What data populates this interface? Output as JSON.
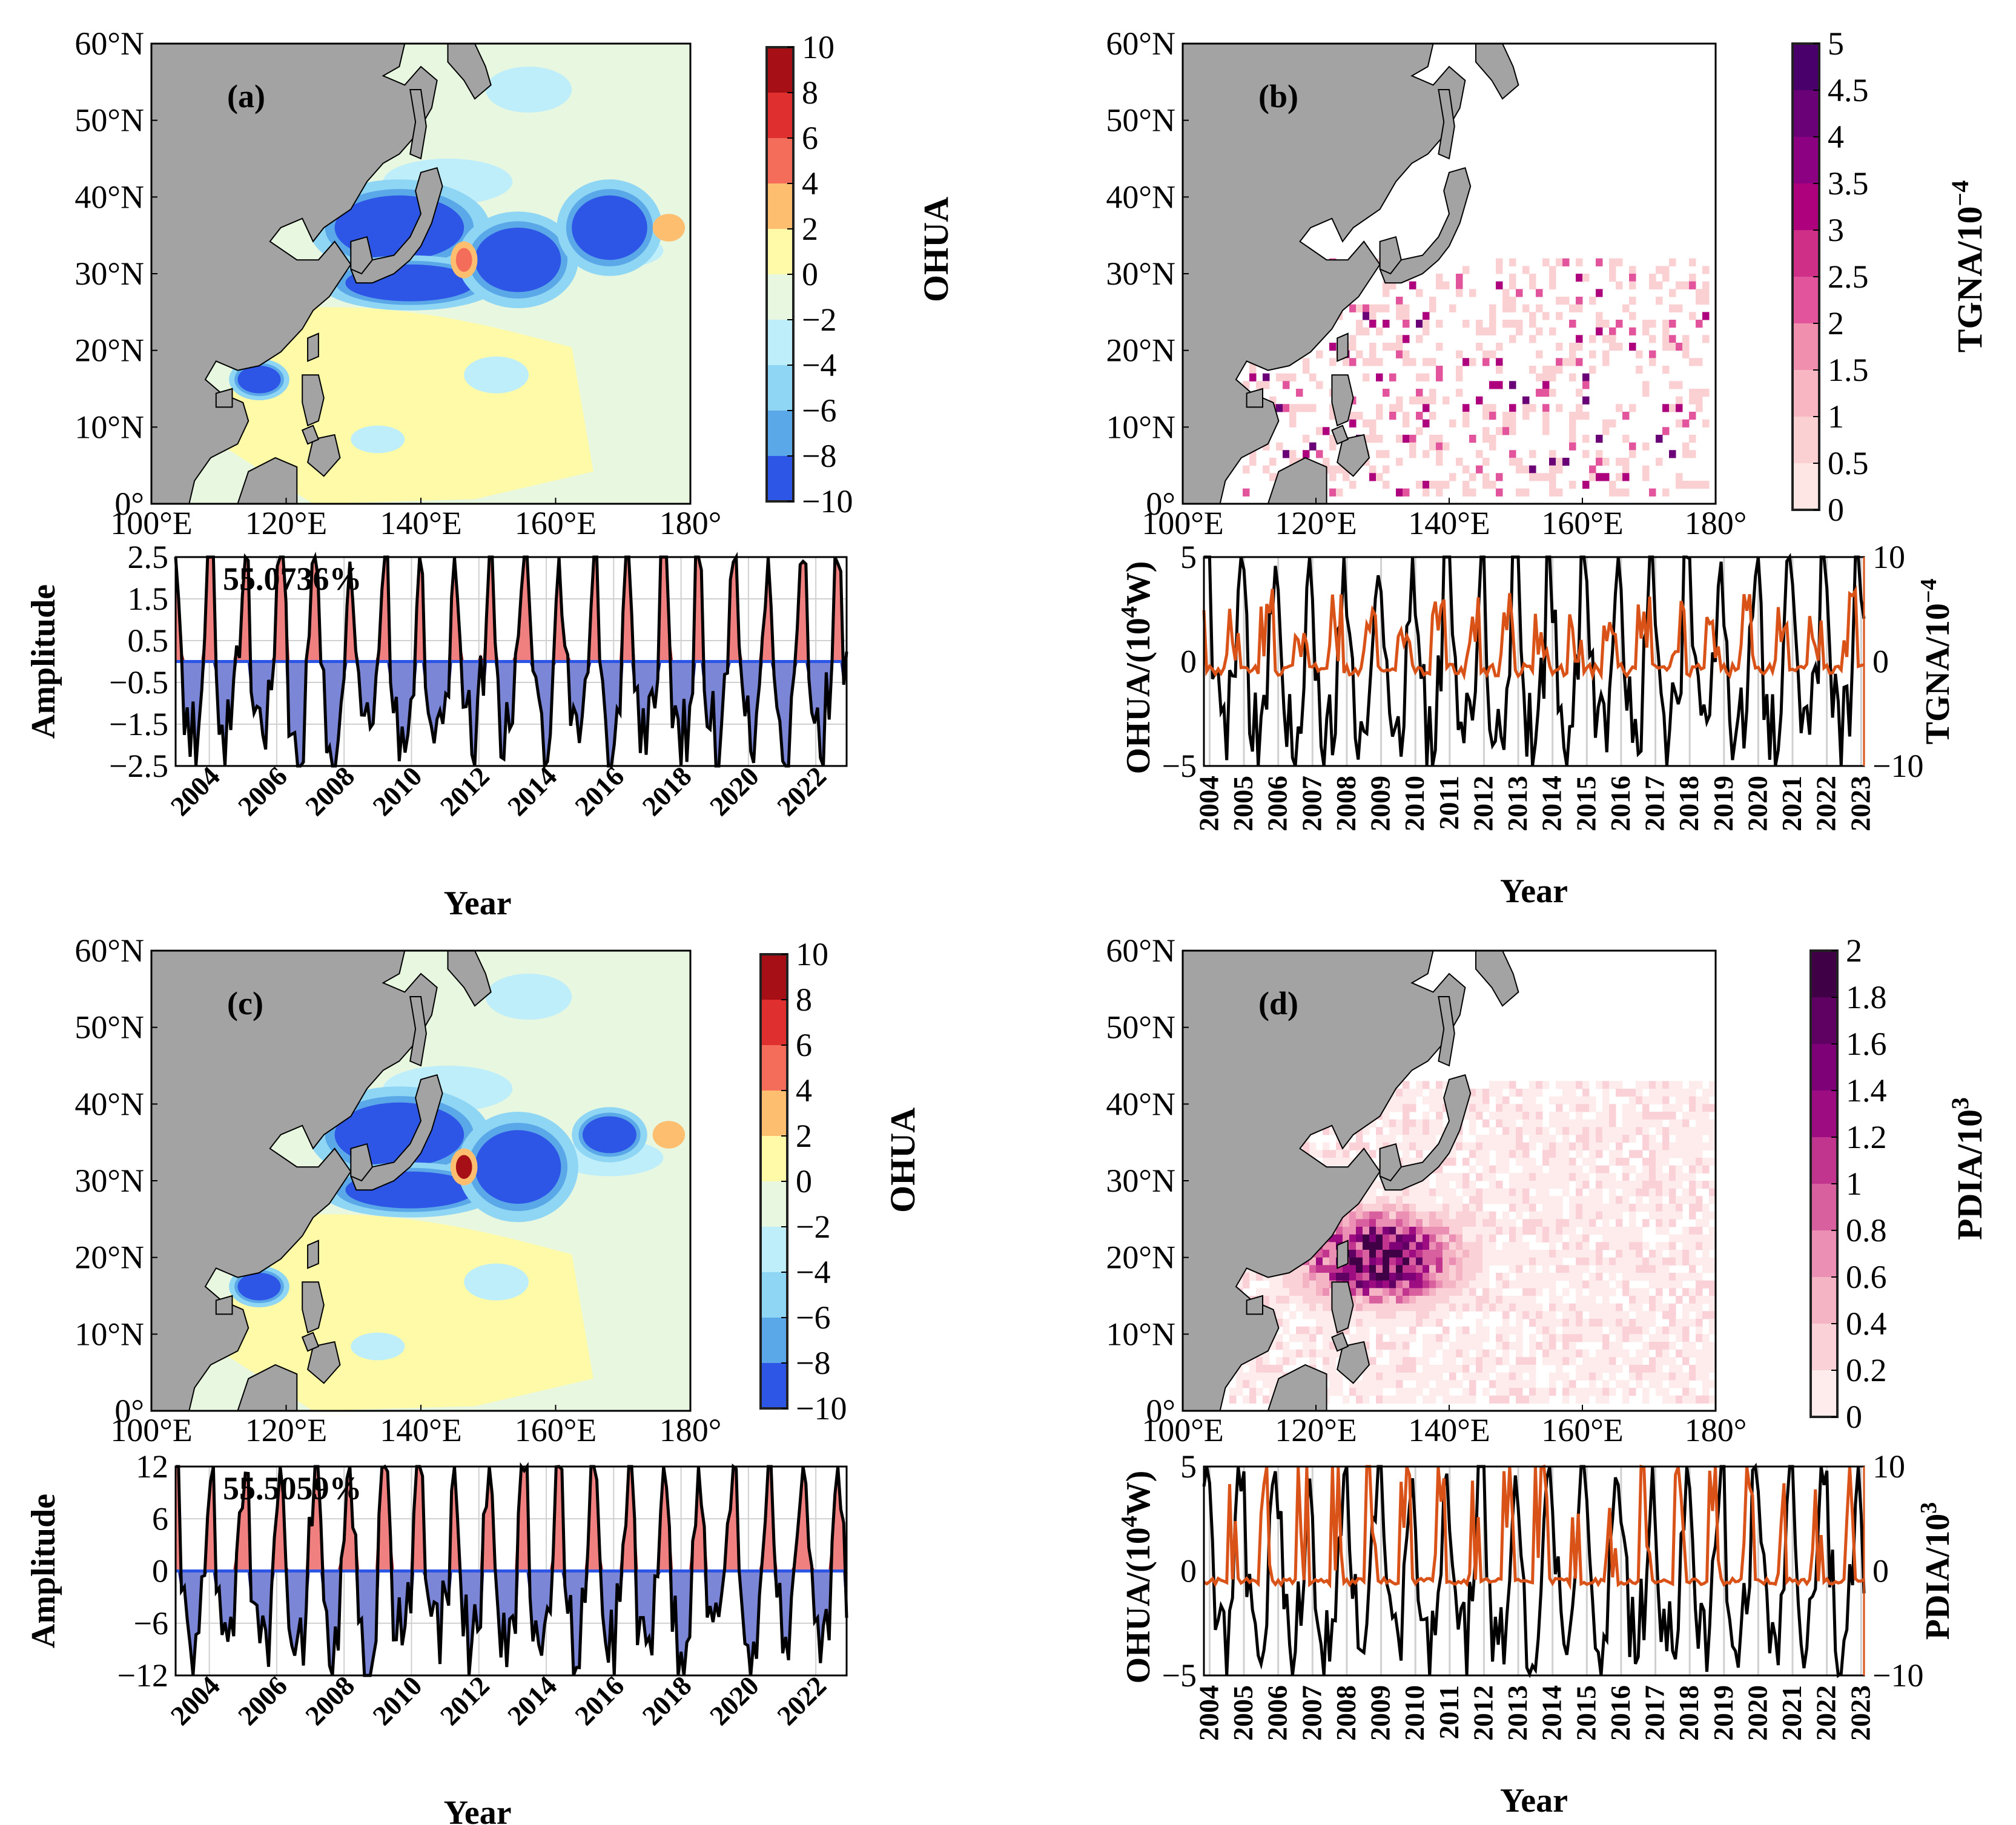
{
  "chart_data": [
    {
      "panel": "(a)",
      "type": "heatmap",
      "colorbar_label": "OHUA",
      "colorbar_ticks": [
        "10",
        "8",
        "6",
        "4",
        "2",
        "0",
        "−2",
        "−4",
        "−6",
        "−8",
        "−10"
      ],
      "colorbar_colors": [
        "#a50f15",
        "#e02f2f",
        "#f46d5a",
        "#fdbf6f",
        "#fefaa8",
        "#e8f7e0",
        "#bfeefb",
        "#8fd6f5",
        "#5ba8e8",
        "#2d55e6"
      ],
      "lon_ticks": [
        "100°E",
        "120°E",
        "140°E",
        "160°E",
        "180°"
      ],
      "lat_ticks": [
        "60°N",
        "50°N",
        "40°N",
        "30°N",
        "20°N",
        "10°N",
        "0°"
      ]
    },
    {
      "panel": "(a) time series",
      "type": "area",
      "ylabel": "Amplitude",
      "xlabel": "Year",
      "variance_text": "55.0736%",
      "yticks": [
        "2.5",
        "1.5",
        "0.5",
        "−0.5",
        "−1.5",
        "−2.5"
      ],
      "ylim": [
        -2.5,
        2.5
      ],
      "xticks": [
        "2004",
        "2006",
        "2008",
        "2010",
        "2012",
        "2014",
        "2016",
        "2018",
        "2020",
        "2022"
      ],
      "amplitude_scale": 1.9
    },
    {
      "panel": "(b)",
      "type": "heatmap",
      "colorbar_label": "TGNA/10",
      "colorbar_exp": "−4",
      "colorbar_ticks": [
        "5",
        "4.5",
        "4",
        "3.5",
        "3",
        "2.5",
        "2",
        "1.5",
        "1",
        "0.5",
        "0"
      ],
      "colorbar_colors": [
        "#49006a",
        "#6a0177",
        "#8c0181",
        "#ae017e",
        "#cf2f87",
        "#e2559d",
        "#f08fae",
        "#f7b6c1",
        "#fbd0d2",
        "#fde6e4"
      ],
      "lon_ticks": [
        "100°E",
        "120°E",
        "140°E",
        "160°E",
        "180°"
      ],
      "lat_ticks": [
        "60°N",
        "50°N",
        "40°N",
        "30°N",
        "20°N",
        "10°N",
        "0°"
      ]
    },
    {
      "panel": "(b) time series",
      "type": "line",
      "ylabel_left": "OHUA/(10",
      "ylabel_left_exp": "4",
      "ylabel_left_end": "W)",
      "ylabel_right": "TGNA/10",
      "ylabel_right_exp": "−4",
      "xlabel": "Year",
      "yticks_left": [
        "5",
        "0",
        "−5"
      ],
      "ylim_left": [
        -5,
        5
      ],
      "yticks_right": [
        "10",
        "0",
        "−10"
      ],
      "ylim_right": [
        -10,
        10
      ],
      "xticks": [
        "2004",
        "2005",
        "2006",
        "2007",
        "2008",
        "2009",
        "2010",
        "2011",
        "2012",
        "2013",
        "2014",
        "2015",
        "2016",
        "2017",
        "2018",
        "2019",
        "2020",
        "2021",
        "2022",
        "2023"
      ],
      "series": [
        {
          "name": "OHUA",
          "color": "#000000"
        },
        {
          "name": "TGNA",
          "color": "#d95319"
        }
      ]
    },
    {
      "panel": "(c)",
      "type": "heatmap",
      "colorbar_label": "OHUA",
      "colorbar_ticks": [
        "10",
        "8",
        "6",
        "4",
        "2",
        "0",
        "−2",
        "−4",
        "−6",
        "−8",
        "−10"
      ],
      "colorbar_colors": [
        "#a50f15",
        "#e02f2f",
        "#f46d5a",
        "#fdbf6f",
        "#fefaa8",
        "#e8f7e0",
        "#bfeefb",
        "#8fd6f5",
        "#5ba8e8",
        "#2d55e6"
      ],
      "lon_ticks": [
        "100°E",
        "120°E",
        "140°E",
        "160°E",
        "180°"
      ],
      "lat_ticks": [
        "60°N",
        "50°N",
        "40°N",
        "30°N",
        "20°N",
        "10°N",
        "0°"
      ]
    },
    {
      "panel": "(c) time series",
      "type": "area",
      "ylabel": "Amplitude",
      "xlabel": "Year",
      "variance_text": "55.5059%",
      "yticks": [
        "12",
        "6",
        "0",
        "−6",
        "−12"
      ],
      "ylim": [
        -12,
        12
      ],
      "xticks": [
        "2004",
        "2006",
        "2008",
        "2010",
        "2012",
        "2014",
        "2016",
        "2018",
        "2020",
        "2022"
      ],
      "amplitude_scale": 9.0
    },
    {
      "panel": "(d)",
      "type": "heatmap",
      "colorbar_label": "PDIA/10",
      "colorbar_exp": "3",
      "colorbar_ticks": [
        "2",
        "1.8",
        "1.6",
        "1.4",
        "1.2",
        "1",
        "0.8",
        "0.6",
        "0.4",
        "0.2",
        "0"
      ],
      "colorbar_colors": [
        "#3f0046",
        "#5e0162",
        "#7f0177",
        "#9e0c81",
        "#c2358e",
        "#d9609f",
        "#eb8fb4",
        "#f5b4c4",
        "#f9d1d6",
        "#fdeceb"
      ],
      "lon_ticks": [
        "100°E",
        "120°E",
        "140°E",
        "160°E",
        "180°"
      ],
      "lat_ticks": [
        "60°N",
        "50°N",
        "40°N",
        "30°N",
        "20°N",
        "10°N",
        "0°"
      ]
    },
    {
      "panel": "(d) time series",
      "type": "line",
      "ylabel_left": "OHUA/(10",
      "ylabel_left_exp": "4",
      "ylabel_left_end": "W)",
      "ylabel_right": "PDIA/10",
      "ylabel_right_exp": "3",
      "xlabel": "Year",
      "yticks_left": [
        "5",
        "0",
        "−5"
      ],
      "ylim_left": [
        -5,
        5
      ],
      "yticks_right": [
        "10",
        "0",
        "−10"
      ],
      "ylim_right": [
        -10,
        10
      ],
      "xticks": [
        "2004",
        "2005",
        "2006",
        "2007",
        "2008",
        "2009",
        "2010",
        "2011",
        "2012",
        "2013",
        "2014",
        "2015",
        "2016",
        "2017",
        "2018",
        "2019",
        "2020",
        "2021",
        "2022",
        "2023"
      ],
      "series": [
        {
          "name": "OHUA",
          "color": "#000000"
        },
        {
          "name": "PDIA",
          "color": "#d95319"
        }
      ]
    }
  ],
  "colors": {
    "land": "#a3a3a3",
    "ocean_base_ac": "#e8f7e0",
    "neg_strong": "#2d55e6",
    "pos_warm": "#fefaa8",
    "orange_series": "#d95319",
    "pos_fill": "#f08080",
    "neg_fill": "#7b86d6"
  }
}
